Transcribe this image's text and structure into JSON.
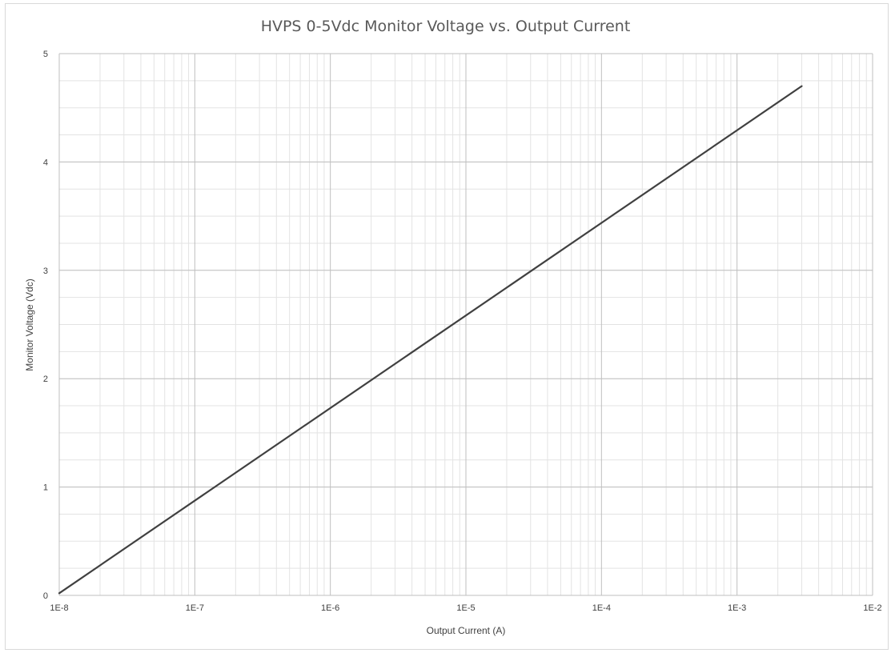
{
  "chart_data": {
    "type": "line",
    "title": "HVPS 0-5Vdc Monitor Voltage vs. Output Current",
    "xlabel": "Output Current (A)",
    "ylabel": "Monitor Voltage (Vdc)",
    "x_scale": "log",
    "xlim": [
      1e-08,
      0.01
    ],
    "ylim": [
      0,
      5
    ],
    "x_ticks": [
      1e-08,
      1e-07,
      1e-06,
      1e-05,
      0.0001,
      0.001,
      0.01
    ],
    "x_tick_labels": [
      "1E-8",
      "1E-7",
      "1E-6",
      "1E-5",
      "1E-4",
      "1E-3",
      "1E-2"
    ],
    "y_ticks": [
      0,
      1,
      2,
      3,
      4,
      5
    ],
    "y_tick_labels": [
      "0",
      "1",
      "2",
      "3",
      "4",
      "5"
    ],
    "grid": true,
    "legend": "none",
    "series": [
      {
        "color": "#404040",
        "x": [
          1e-08,
          0.003
        ],
        "y": [
          0.02,
          4.7
        ]
      }
    ]
  }
}
